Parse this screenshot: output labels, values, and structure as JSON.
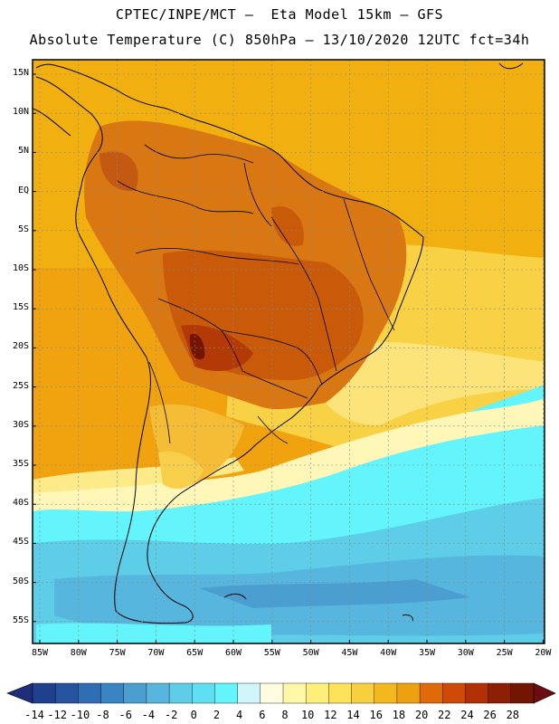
{
  "title_line1": "CPTEC/INPE/MCT —  Eta Model 15km — GFS",
  "title_line2": "Absolute Temperature (C) 850hPa — 13/10/2020 12UTC fct=34h",
  "lat_labels": [
    "15N",
    "10N",
    "5N",
    "EQ",
    "5S",
    "10S",
    "15S",
    "20S",
    "25S",
    "30S",
    "35S",
    "40S",
    "45S",
    "50S",
    "55S"
  ],
  "lon_labels": [
    "85W",
    "80W",
    "75W",
    "70W",
    "65W",
    "60W",
    "55W",
    "50W",
    "45W",
    "40W",
    "35W",
    "30W",
    "25W",
    "20W"
  ],
  "colorbar": {
    "labels": [
      "-14",
      "-12",
      "-10",
      "-8",
      "-6",
      "-4",
      "-2",
      "0",
      "2",
      "4",
      "6",
      "8",
      "10",
      "12",
      "14",
      "16",
      "18",
      "20",
      "22",
      "24",
      "26",
      "28"
    ],
    "colors": [
      "#1f3f8f",
      "#2553a0",
      "#2f6db4",
      "#3984c2",
      "#4a9ed0",
      "#56b6de",
      "#5dcde8",
      "#5fe0f2",
      "#63f4fc",
      "#cff6fb",
      "#fffbe0",
      "#fff7a8",
      "#fff07a",
      "#fde25a",
      "#f8cf3c",
      "#f3b81e",
      "#efa010",
      "#e06a08",
      "#cf4a06",
      "#b33004",
      "#8e1e03",
      "#741502"
    ],
    "under_color": "#1c2f78",
    "over_color": "#6a0c10"
  }
}
